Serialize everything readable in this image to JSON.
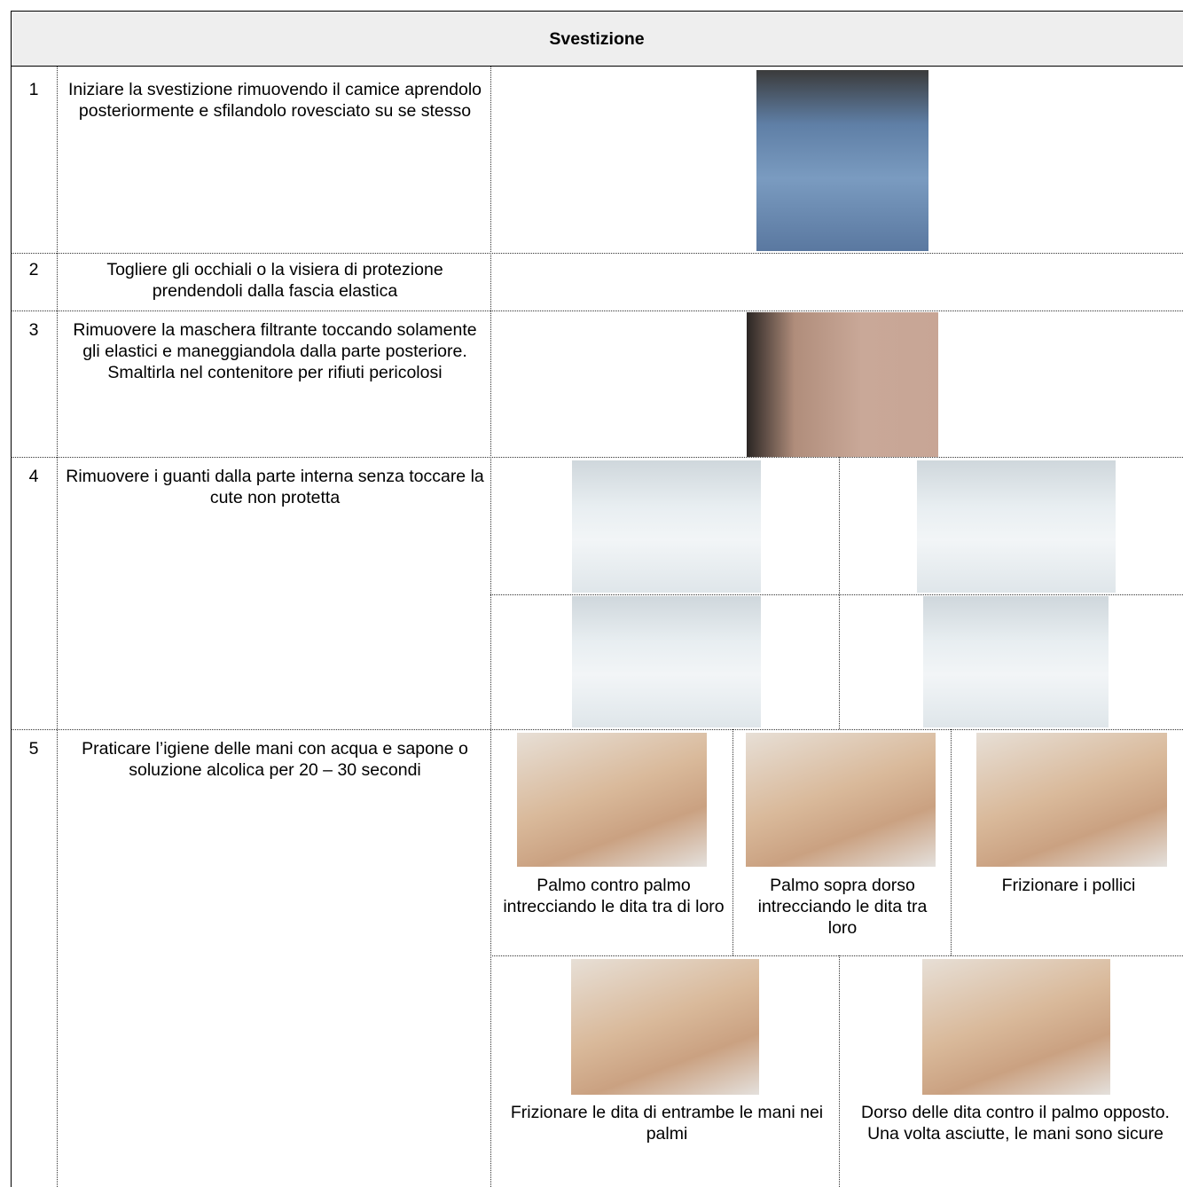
{
  "header": {
    "title": "Svestizione"
  },
  "rows": [
    {
      "number": "1",
      "text": "Iniziare la svestizione rimuovendo il camice aprendolo posteriormente e sfilandolo rovesciato su se stesso"
    },
    {
      "number": "2",
      "text": "Togliere gli occhiali o la visiera di protezione prendendoli dalla fascia elastica"
    },
    {
      "number": "3",
      "text": "Rimuovere la maschera filtrante toccando solamente gli elastici e maneggiandola dalla parte posteriore. Smaltirla nel contenitore per rifiuti pericolosi"
    },
    {
      "number": "4",
      "text": "Rimuovere i guanti dalla parte interna senza toccare la cute non protetta"
    },
    {
      "number": "5",
      "text": "Praticare l’igiene delle mani con acqua e sapone o soluzione alcolica per 20 – 30 secondi",
      "captions": [
        "Palmo contro palmo intrecciando le dita tra di loro",
        "Palmo sopra dorso intrecciando le dita tra loro",
        "Frizionare i pollici",
        "Frizionare le dita di entrambe le mani nei palmi",
        "Dorso delle dita contro il palmo opposto. Una volta asciutte, le mani sono sicure"
      ]
    }
  ]
}
